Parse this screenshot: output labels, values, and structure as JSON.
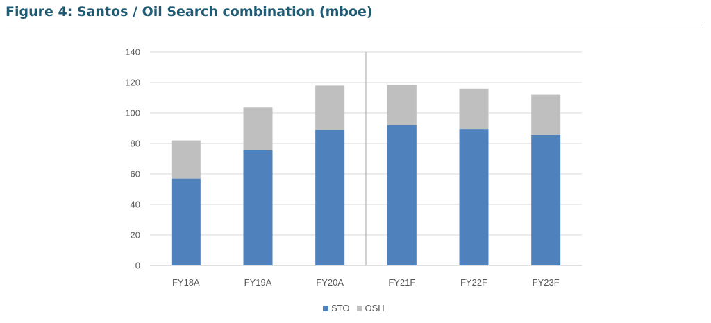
{
  "figure": {
    "title": "Figure 4: Santos / Oil Search combination (mboe)"
  },
  "chart_data": {
    "type": "bar",
    "stacked": true,
    "categories": [
      "FY18A",
      "FY19A",
      "FY20A",
      "FY21F",
      "FY22F",
      "FY23F"
    ],
    "series": [
      {
        "name": "STO",
        "color": "#4f81bd",
        "values": [
          57,
          75.5,
          89,
          92,
          89.5,
          85.5
        ]
      },
      {
        "name": "OSH",
        "color": "#bfbfbf",
        "values": [
          25,
          28,
          29,
          26.5,
          26.5,
          26.5
        ]
      }
    ],
    "ylim": [
      0,
      140
    ],
    "yticks": [
      "0",
      "20",
      "40",
      "60",
      "80",
      "100",
      "120",
      "140"
    ],
    "grid": true,
    "legend_position": "bottom",
    "divider_after_category": "FY20A",
    "title": "",
    "xlabel": "",
    "ylabel": ""
  }
}
